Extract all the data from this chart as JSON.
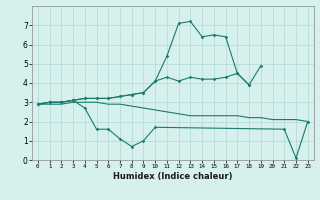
{
  "xlabel": "Humidex (Indice chaleur)",
  "ylabel": "",
  "bg_color": "#d6f0ee",
  "grid_color": "#b0d8d4",
  "line_color": "#1a7a6e",
  "x": [
    0,
    1,
    2,
    3,
    4,
    5,
    6,
    7,
    8,
    9,
    10,
    11,
    12,
    13,
    14,
    15,
    16,
    17,
    18,
    19,
    20,
    21,
    22,
    23
  ],
  "line1": [
    2.9,
    3.0,
    3.0,
    3.1,
    2.7,
    1.6,
    1.6,
    1.1,
    0.7,
    1.0,
    1.7,
    null,
    null,
    null,
    null,
    null,
    null,
    null,
    null,
    null,
    null,
    1.6,
    0.1,
    2.0
  ],
  "line2": [
    2.9,
    2.9,
    2.9,
    3.0,
    3.0,
    3.0,
    2.9,
    2.9,
    2.8,
    2.7,
    2.6,
    2.5,
    2.4,
    2.3,
    2.3,
    2.3,
    2.3,
    2.3,
    2.2,
    2.2,
    2.1,
    2.1,
    2.1,
    2.0
  ],
  "line3": [
    2.9,
    3.0,
    3.0,
    3.1,
    3.2,
    3.2,
    3.2,
    3.3,
    3.4,
    3.5,
    4.1,
    4.3,
    4.1,
    4.3,
    4.2,
    4.2,
    4.3,
    4.5,
    3.9,
    4.9,
    null,
    null,
    null,
    null
  ],
  "line4": [
    2.9,
    3.0,
    3.0,
    3.1,
    3.2,
    3.2,
    3.2,
    3.3,
    3.4,
    3.5,
    4.1,
    5.4,
    7.1,
    7.2,
    6.4,
    6.5,
    6.4,
    4.5,
    3.9,
    null,
    null,
    null,
    null,
    null
  ],
  "ylim": [
    0,
    8
  ],
  "xlim": [
    -0.5,
    23.5
  ],
  "xticks": [
    0,
    1,
    2,
    3,
    4,
    5,
    6,
    7,
    8,
    9,
    10,
    11,
    12,
    13,
    14,
    15,
    16,
    17,
    18,
    19,
    20,
    21,
    22,
    23
  ],
  "yticks": [
    0,
    1,
    2,
    3,
    4,
    5,
    6,
    7
  ]
}
